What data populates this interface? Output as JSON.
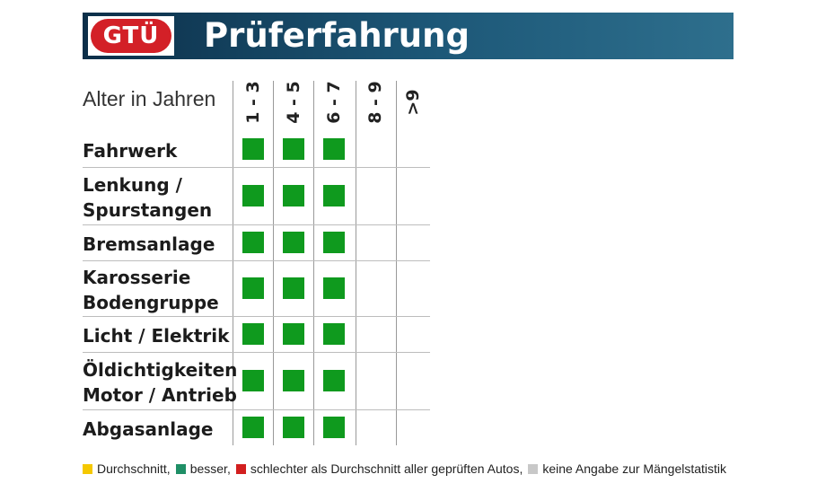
{
  "header": {
    "logo_text": "GTÜ",
    "title": "Prüferfahrung",
    "logo_color": "#d32027",
    "bar_color": "#153f5c"
  },
  "table": {
    "age_label": "Alter in Jahren",
    "columns": [
      "1 - 3",
      "4 - 5",
      "6 - 7",
      "8 - 9",
      ">9"
    ],
    "rows": [
      {
        "label": [
          "Fahrwerk"
        ],
        "ratings": [
          "besser",
          "besser",
          "besser",
          null,
          null
        ]
      },
      {
        "label": [
          "Lenkung /",
          "Spurstangen"
        ],
        "ratings": [
          "besser",
          "besser",
          "besser",
          null,
          null
        ]
      },
      {
        "label": [
          "Bremsanlage"
        ],
        "ratings": [
          "besser",
          "besser",
          "besser",
          null,
          null
        ]
      },
      {
        "label": [
          "Karosserie",
          "Bodengruppe"
        ],
        "ratings": [
          "besser",
          "besser",
          "besser",
          null,
          null
        ]
      },
      {
        "label": [
          "Licht / Elektrik"
        ],
        "ratings": [
          "besser",
          "besser",
          "besser",
          null,
          null
        ]
      },
      {
        "label": [
          "Öldichtigkeiten",
          "Motor / Antrieb"
        ],
        "ratings": [
          "besser",
          "besser",
          "besser",
          null,
          null
        ]
      },
      {
        "label": [
          "Abgasanlage"
        ],
        "ratings": [
          "besser",
          "besser",
          "besser",
          null,
          null
        ]
      }
    ]
  },
  "legend": [
    {
      "key": "durchschnitt",
      "color": "#f5c800",
      "text": "Durchschnitt,"
    },
    {
      "key": "besser",
      "color": "#1f8f66",
      "text": "besser,"
    },
    {
      "key": "schlechter",
      "color": "#d21f1f",
      "text": "schlechter als Durchschnitt aller geprüften Autos,"
    },
    {
      "key": "keine",
      "color": "#c8c8c8",
      "text": "keine Angabe zur Mängelstatistik"
    }
  ],
  "rating_colors": {
    "besser": "#0f9a1e",
    "durchschnitt": "#f5c800",
    "schlechter": "#d21f1f",
    "keine": "#c8c8c8"
  }
}
